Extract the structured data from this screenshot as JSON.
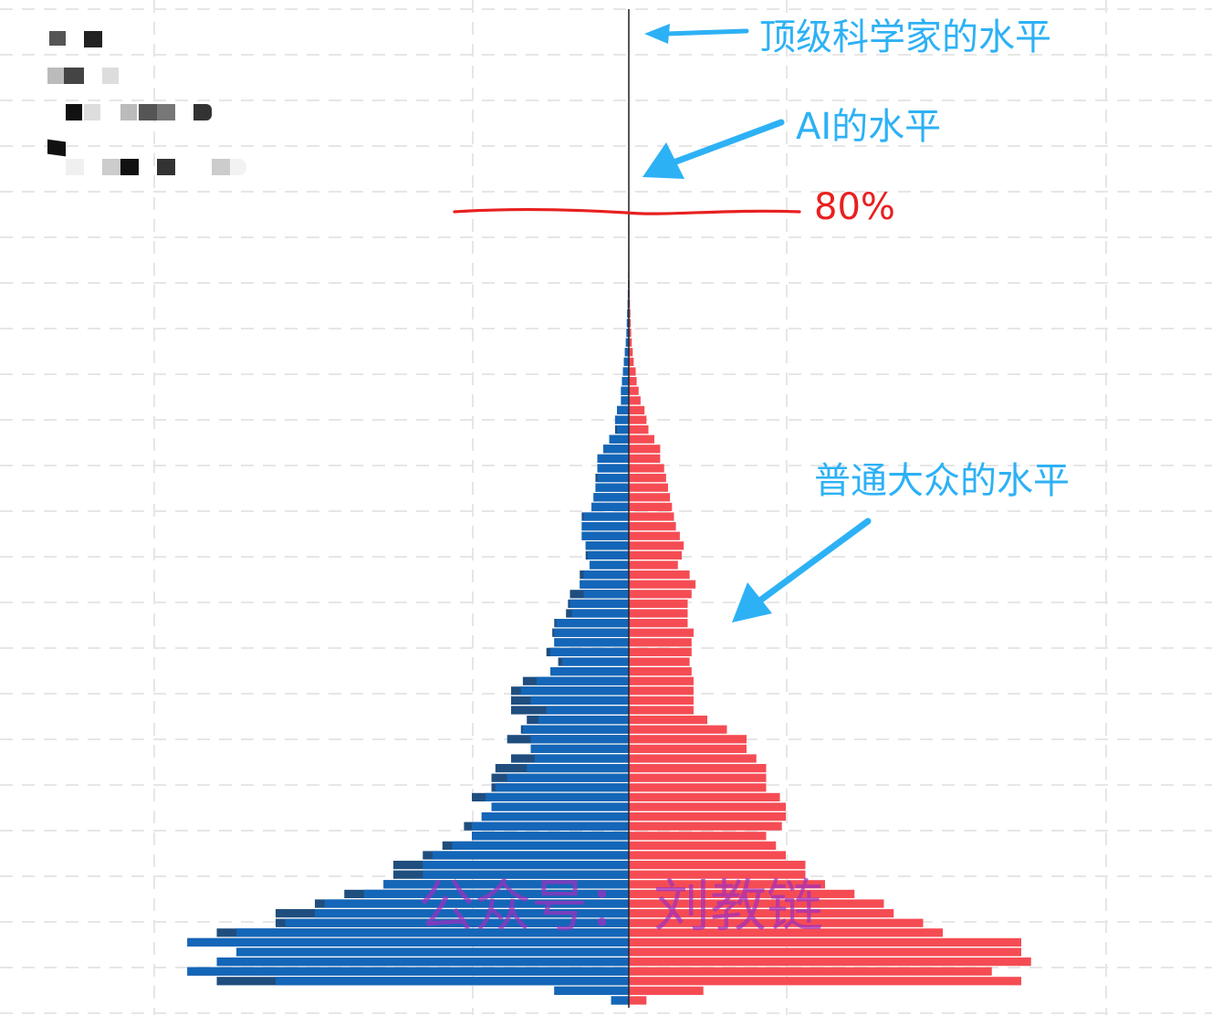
{
  "annotations": {
    "top_scientist": "顶级科学家的水平",
    "ai_level": "AI的水平",
    "threshold": "80%",
    "general_public": "普通大众的水平"
  },
  "watermark": {
    "left": "公众号：",
    "right": "刘教链"
  },
  "colors": {
    "left_bars": "#1466b8",
    "left_bars_dark": "#1f4e7e",
    "right_bars": "#f54c54",
    "grid": "#e6e6e6",
    "annotation_blue": "#2db1f5",
    "threshold_red": "#e82020",
    "watermark": "#a12fc0"
  },
  "chart_data": {
    "type": "bar",
    "orientation": "horizontal-mirrored",
    "bins": 82,
    "series": [
      {
        "side": "left",
        "values": [
          0.9,
          3.8,
          18.0,
          22.5,
          21.0,
          20.0,
          22.5,
          20.0,
          17.5,
          16.0,
          15.5,
          13.5,
          12.5,
          10.5,
          10.5,
          10.0,
          9.0,
          8.0,
          8.0,
          7.5,
          7.0,
          7.3,
          6.8,
          6.2,
          5.2,
          4.8,
          5.0,
          5.0,
          5.4,
          4.6,
          4.2,
          5.0,
          5.5,
          4.7,
          4.0,
          3.4,
          4.0,
          3.8,
          3.8,
          3.7,
          2.9,
          3.0,
          2.3,
          2.5,
          2.3,
          2.0,
          2.1,
          2.2,
          2.4,
          2.4,
          2.3,
          1.9,
          1.8,
          1.7,
          1.6,
          1.6,
          1.6,
          1.3,
          1.0,
          0.6,
          0.7,
          0.6,
          0.4,
          0.4,
          0.35,
          0.3,
          0.25,
          0.2,
          0.15,
          0.12,
          0.1,
          0.08,
          0.06,
          0.05,
          0.04,
          0.03,
          0.02,
          0.02,
          0.01,
          0.01,
          0.005,
          0.005
        ],
        "dark_segment_values": [
          0.9,
          3.8,
          21.0,
          22.5,
          21.0,
          20.0,
          22.5,
          21.0,
          18.0,
          18.0,
          16.0,
          14.5,
          12.5,
          12.0,
          12.0,
          10.5,
          9.5,
          8.0,
          8.4,
          7.5,
          7.0,
          8.0,
          7.0,
          7.0,
          6.8,
          6.0,
          5.0,
          6.2,
          5.5,
          5.2,
          6.0,
          6.0,
          6.0,
          5.4,
          4.0,
          3.6,
          4.2,
          3.8,
          3.9,
          3.8,
          3.2,
          3.1,
          3.0,
          2.5,
          2.5,
          2.0,
          2.2,
          2.2,
          2.4,
          2.4,
          2.4,
          1.9,
          1.8,
          1.7,
          1.7,
          1.6,
          1.6,
          1.3,
          1.0,
          0.7,
          0.7,
          0.6,
          0.4,
          0.4,
          0.35,
          0.3,
          0.25,
          0.2,
          0.15,
          0.12,
          0.1,
          0.08,
          0.06,
          0.05,
          0.04,
          0.03,
          0.02,
          0.02,
          0.01,
          0.01,
          0.005,
          0.005
        ]
      },
      {
        "side": "right",
        "values": [
          0.9,
          3.8,
          20.0,
          18.5,
          20.5,
          20.0,
          20.0,
          16.0,
          15.0,
          13.5,
          13.0,
          11.5,
          10.0,
          9.0,
          9.0,
          8.0,
          7.5,
          7.0,
          7.8,
          8.0,
          8.0,
          7.7,
          7.0,
          7.0,
          7.0,
          6.5,
          6.0,
          6.0,
          5.0,
          4.0,
          3.3,
          3.3,
          3.3,
          3.3,
          3.2,
          3.1,
          3.2,
          3.2,
          3.3,
          3.0,
          3.0,
          3.0,
          3.2,
          3.4,
          3.1,
          2.5,
          2.7,
          2.8,
          2.6,
          2.4,
          2.3,
          2.2,
          2.1,
          2.0,
          1.9,
          1.8,
          1.6,
          1.6,
          1.3,
          1.0,
          0.9,
          0.8,
          0.6,
          0.5,
          0.4,
          0.35,
          0.25,
          0.2,
          0.15,
          0.12,
          0.1,
          0.08,
          0.06,
          0.05,
          0.04,
          0.03,
          0.02,
          0.02,
          0.01,
          0.01,
          0.005,
          0.005
        ]
      }
    ],
    "grid": true
  }
}
